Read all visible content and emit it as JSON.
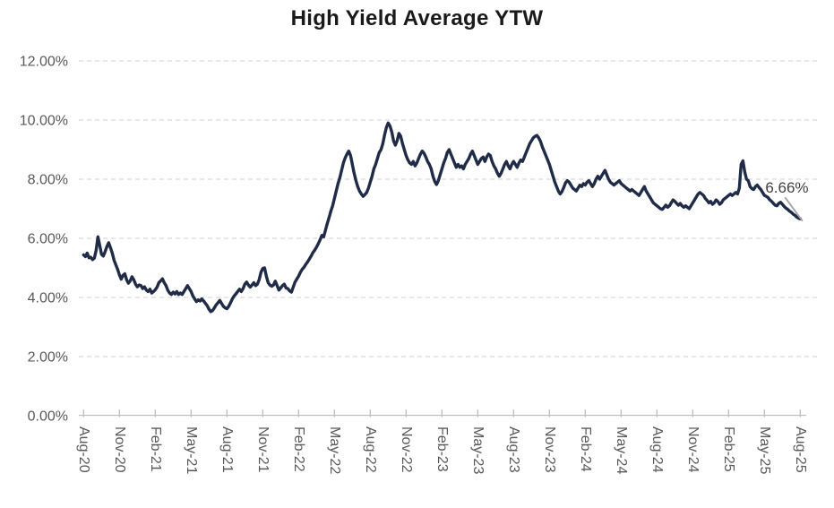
{
  "chart": {
    "title": "High Yield Average YTW"
  },
  "annotation": {
    "end_value_label": "6.66%"
  },
  "colors": {
    "line": "#1f2b47",
    "gridline": "#d9d9d9",
    "axis_line": "#bfbfbf",
    "tick": "#bfbfbf",
    "axis_text": "#595959",
    "title_text": "#1a1a1a",
    "annotation_text": "#404040",
    "leader_line": "#a3a3a3",
    "background": "#ffffff"
  },
  "chart_data": {
    "type": "line",
    "title": "High Yield Average YTW",
    "xlabel": "",
    "ylabel": "",
    "legend": "none",
    "grid": "horizontal-dashed",
    "ylim": [
      0,
      12
    ],
    "y_tick_step_pct": 2,
    "y_tick_labels": [
      "0.00%",
      "2.00%",
      "4.00%",
      "6.00%",
      "8.00%",
      "10.00%",
      "12.00%"
    ],
    "x_tick_labels": [
      "Aug-20",
      "Nov-20",
      "Feb-21",
      "May-21",
      "Aug-21",
      "Nov-21",
      "Feb-22",
      "May-22",
      "Aug-22",
      "Nov-22",
      "Feb-23",
      "May-23",
      "Aug-23",
      "Nov-23",
      "Feb-24",
      "May-24",
      "Aug-24",
      "Nov-24",
      "Feb-25",
      "May-25",
      "Aug-25"
    ],
    "x_tick_interval_months": 3,
    "x_label_rotation_deg": 90,
    "end_value": 6.66,
    "end_value_label": "6.66%",
    "series": [
      {
        "name": "High Yield Average YTW",
        "t_unit": "months since Aug-2020",
        "t0": 0,
        "dt": 0.15,
        "values": [
          5.44,
          5.38,
          5.5,
          5.34,
          5.36,
          5.28,
          5.33,
          5.6,
          6.05,
          5.76,
          5.46,
          5.4,
          5.55,
          5.72,
          5.85,
          5.68,
          5.5,
          5.26,
          5.1,
          4.95,
          4.76,
          4.62,
          4.75,
          4.8,
          4.6,
          4.48,
          4.56,
          4.7,
          4.6,
          4.45,
          4.36,
          4.42,
          4.4,
          4.3,
          4.36,
          4.25,
          4.2,
          4.28,
          4.15,
          4.2,
          4.26,
          4.35,
          4.5,
          4.56,
          4.63,
          4.5,
          4.4,
          4.24,
          4.15,
          4.1,
          4.18,
          4.12,
          4.2,
          4.1,
          4.15,
          4.1,
          4.2,
          4.3,
          4.4,
          4.3,
          4.2,
          4.05,
          3.95,
          3.86,
          3.92,
          3.88,
          3.95,
          3.88,
          3.8,
          3.72,
          3.6,
          3.52,
          3.56,
          3.65,
          3.75,
          3.82,
          3.9,
          3.8,
          3.7,
          3.65,
          3.62,
          3.7,
          3.82,
          3.95,
          4.05,
          4.12,
          4.2,
          4.28,
          4.2,
          4.3,
          4.45,
          4.52,
          4.42,
          4.35,
          4.42,
          4.5,
          4.4,
          4.45,
          4.6,
          4.85,
          4.98,
          5.0,
          4.72,
          4.5,
          4.42,
          4.38,
          4.42,
          4.55,
          4.4,
          4.25,
          4.32,
          4.4,
          4.45,
          4.32,
          4.3,
          4.22,
          4.18,
          4.35,
          4.52,
          4.62,
          4.72,
          4.85,
          4.95,
          5.02,
          5.12,
          5.2,
          5.3,
          5.4,
          5.52,
          5.6,
          5.7,
          5.82,
          5.95,
          6.1,
          6.05,
          6.28,
          6.5,
          6.7,
          6.92,
          7.1,
          7.35,
          7.6,
          7.85,
          8.05,
          8.3,
          8.55,
          8.72,
          8.85,
          8.95,
          8.8,
          8.5,
          8.2,
          7.95,
          7.75,
          7.6,
          7.5,
          7.42,
          7.48,
          7.55,
          7.7,
          7.9,
          8.1,
          8.35,
          8.5,
          8.7,
          8.9,
          9.0,
          9.2,
          9.5,
          9.75,
          9.9,
          9.8,
          9.6,
          9.3,
          9.15,
          9.3,
          9.55,
          9.45,
          9.2,
          9.0,
          8.8,
          8.65,
          8.55,
          8.5,
          8.6,
          8.45,
          8.55,
          8.7,
          8.85,
          8.95,
          8.88,
          8.75,
          8.6,
          8.5,
          8.35,
          8.1,
          7.92,
          7.82,
          7.95,
          8.15,
          8.35,
          8.55,
          8.7,
          8.9,
          9.0,
          8.85,
          8.7,
          8.55,
          8.4,
          8.5,
          8.4,
          8.45,
          8.35,
          8.5,
          8.6,
          8.7,
          8.85,
          8.95,
          8.8,
          8.65,
          8.5,
          8.6,
          8.7,
          8.75,
          8.6,
          8.75,
          8.85,
          8.8,
          8.6,
          8.45,
          8.35,
          8.2,
          8.1,
          8.2,
          8.35,
          8.5,
          8.6,
          8.45,
          8.35,
          8.5,
          8.6,
          8.5,
          8.4,
          8.55,
          8.65,
          8.6,
          8.75,
          8.9,
          9.05,
          9.2,
          9.3,
          9.4,
          9.45,
          9.48,
          9.4,
          9.28,
          9.1,
          8.95,
          8.8,
          8.65,
          8.5,
          8.3,
          8.1,
          7.9,
          7.75,
          7.6,
          7.5,
          7.58,
          7.72,
          7.88,
          7.95,
          7.9,
          7.8,
          7.7,
          7.65,
          7.6,
          7.7,
          7.8,
          7.75,
          7.85,
          7.8,
          7.9,
          7.95,
          7.85,
          7.75,
          7.85,
          8.0,
          8.1,
          8.0,
          8.1,
          8.2,
          8.3,
          8.15,
          8.0,
          7.9,
          7.85,
          7.8,
          7.85,
          7.9,
          7.95,
          7.85,
          7.8,
          7.75,
          7.7,
          7.65,
          7.6,
          7.65,
          7.6,
          7.55,
          7.5,
          7.45,
          7.55,
          7.65,
          7.75,
          7.6,
          7.5,
          7.4,
          7.3,
          7.2,
          7.15,
          7.1,
          7.05,
          7.0,
          6.98,
          7.05,
          7.12,
          7.05,
          7.1,
          7.2,
          7.3,
          7.25,
          7.18,
          7.12,
          7.18,
          7.1,
          7.05,
          7.1,
          7.05,
          7.0,
          7.1,
          7.2,
          7.3,
          7.4,
          7.5,
          7.55,
          7.5,
          7.45,
          7.35,
          7.28,
          7.2,
          7.25,
          7.15,
          7.2,
          7.3,
          7.25,
          7.15,
          7.2,
          7.3,
          7.35,
          7.4,
          7.45,
          7.5,
          7.45,
          7.5,
          7.55,
          7.5,
          7.7,
          8.5,
          8.62,
          8.25,
          8.0,
          7.95,
          7.75,
          7.68,
          7.65,
          7.75,
          7.8,
          7.72,
          7.65,
          7.55,
          7.45,
          7.42,
          7.38,
          7.3,
          7.25,
          7.18,
          7.12,
          7.1,
          7.18,
          7.22,
          7.15,
          7.08,
          7.02,
          6.98,
          6.92,
          6.88,
          6.82,
          6.78,
          6.72,
          6.68,
          6.66
        ]
      }
    ]
  }
}
